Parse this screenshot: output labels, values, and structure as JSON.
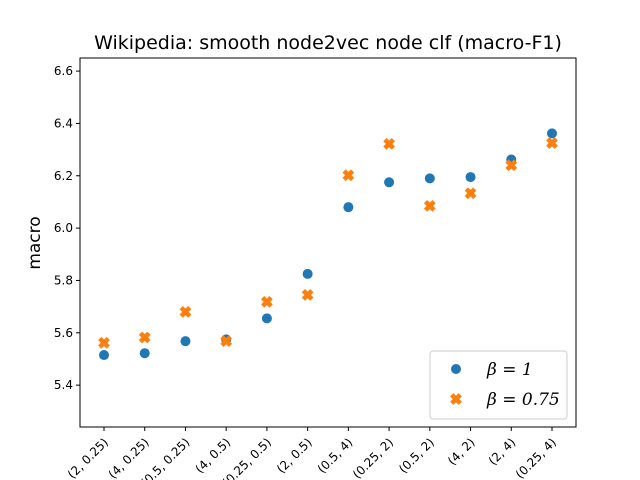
{
  "chart_data": {
    "type": "scatter",
    "title": "Wikipedia: smooth node2vec node clf (macro-F1)",
    "xlabel": "",
    "ylabel": "macro",
    "ylim": [
      5.24,
      6.65
    ],
    "yticks": [
      5.4,
      5.6,
      5.8,
      6.0,
      6.2,
      6.4,
      6.6
    ],
    "ytick_labels": [
      "5.4",
      "5.6",
      "5.8",
      "6.0",
      "6.2",
      "6.4",
      "6.6"
    ],
    "categories": [
      "(2, 0.25)",
      "(4, 0.25)",
      "(0.5, 0.25)",
      "(4, 0.5)",
      "(0.25, 0.5)",
      "(2, 0.5)",
      "(0.5, 4)",
      "(0.25, 2)",
      "(0.5, 2)",
      "(4, 2)",
      "(2, 4)",
      "(0.25, 4)"
    ],
    "legend_position": "lower right",
    "series": [
      {
        "name": "β = 1",
        "legend_label": "β = 1",
        "marker": "circle",
        "color": "#1f77b4",
        "values": [
          5.515,
          5.522,
          5.568,
          5.575,
          5.655,
          5.825,
          6.08,
          6.175,
          6.19,
          6.195,
          6.262,
          6.362
        ]
      },
      {
        "name": "β = 0.75",
        "legend_label": "β = 0.75",
        "marker": "x-filled",
        "color": "#ff7f0e",
        "values": [
          5.562,
          5.582,
          5.68,
          5.568,
          5.718,
          5.745,
          6.202,
          6.322,
          6.085,
          6.133,
          6.24,
          6.325
        ]
      }
    ]
  }
}
